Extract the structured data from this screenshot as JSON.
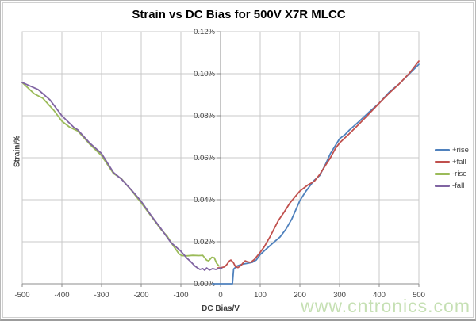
{
  "chart_data": {
    "type": "line",
    "title": "Strain vs DC Bias for 500V X7R MLCC",
    "xlabel": "DC Bias/V",
    "ylabel": "Strain/%",
    "xlim": [
      -500,
      500
    ],
    "ylim_percent": [
      0,
      0.12
    ],
    "grid": true,
    "legend_position": "right",
    "x_ticks": [
      {
        "value": -500,
        "label": "-500"
      },
      {
        "value": -400,
        "label": "-400"
      },
      {
        "value": -300,
        "label": "-300"
      },
      {
        "value": -200,
        "label": "-200"
      },
      {
        "value": -100,
        "label": "-100"
      },
      {
        "value": 0,
        "label": "0"
      },
      {
        "value": 100,
        "label": "100"
      },
      {
        "value": 200,
        "label": "200"
      },
      {
        "value": 300,
        "label": "300"
      },
      {
        "value": 400,
        "label": "400"
      },
      {
        "value": 500,
        "label": "500"
      }
    ],
    "y_ticks": [
      {
        "value": 0.0,
        "label": "0.00%"
      },
      {
        "value": 0.02,
        "label": "0.02%"
      },
      {
        "value": 0.04,
        "label": "0.04%"
      },
      {
        "value": 0.06,
        "label": "0.06%"
      },
      {
        "value": 0.08,
        "label": "0.08%"
      },
      {
        "value": 0.1,
        "label": "0.10%"
      },
      {
        "value": 0.12,
        "label": "0.12%"
      }
    ],
    "series": [
      {
        "name": "+rise",
        "color": "#4F81BD",
        "points": [
          [
            -20,
            0.0
          ],
          [
            30,
            0.0
          ],
          [
            33,
            0.007
          ],
          [
            42,
            0.0085
          ],
          [
            55,
            0.0093
          ],
          [
            70,
            0.0098
          ],
          [
            80,
            0.0102
          ],
          [
            90,
            0.0113
          ],
          [
            100,
            0.0139
          ],
          [
            115,
            0.0165
          ],
          [
            130,
            0.019
          ],
          [
            150,
            0.0223
          ],
          [
            165,
            0.026
          ],
          [
            180,
            0.031
          ],
          [
            200,
            0.0396
          ],
          [
            215,
            0.044
          ],
          [
            235,
            0.049
          ],
          [
            250,
            0.0515
          ],
          [
            265,
            0.057
          ],
          [
            277,
            0.062
          ],
          [
            300,
            0.069
          ],
          [
            315,
            0.0712
          ],
          [
            325,
            0.0732
          ],
          [
            350,
            0.0774
          ],
          [
            375,
            0.0818
          ],
          [
            400,
            0.086
          ],
          [
            425,
            0.0912
          ],
          [
            450,
            0.0951
          ],
          [
            475,
            0.0998
          ],
          [
            500,
            0.1045
          ]
        ]
      },
      {
        "name": "+fall",
        "color": "#C0504D",
        "points": [
          [
            -8,
            0.0075
          ],
          [
            0,
            0.0076
          ],
          [
            10,
            0.008
          ],
          [
            16,
            0.0092
          ],
          [
            22,
            0.0108
          ],
          [
            26,
            0.0113
          ],
          [
            32,
            0.0102
          ],
          [
            38,
            0.008
          ],
          [
            44,
            0.0077
          ],
          [
            52,
            0.0088
          ],
          [
            58,
            0.0102
          ],
          [
            62,
            0.0109
          ],
          [
            68,
            0.0104
          ],
          [
            76,
            0.0102
          ],
          [
            85,
            0.0115
          ],
          [
            96,
            0.014
          ],
          [
            110,
            0.0175
          ],
          [
            125,
            0.0225
          ],
          [
            146,
            0.0302
          ],
          [
            160,
            0.034
          ],
          [
            175,
            0.0385
          ],
          [
            200,
            0.0441
          ],
          [
            220,
            0.047
          ],
          [
            236,
            0.0487
          ],
          [
            250,
            0.052
          ],
          [
            265,
            0.0565
          ],
          [
            277,
            0.06
          ],
          [
            290,
            0.0645
          ],
          [
            300,
            0.067
          ],
          [
            325,
            0.0715
          ],
          [
            350,
            0.0762
          ],
          [
            375,
            0.081
          ],
          [
            400,
            0.086
          ],
          [
            425,
            0.0907
          ],
          [
            450,
            0.0951
          ],
          [
            475,
            0.1
          ],
          [
            500,
            0.106
          ]
        ]
      },
      {
        "name": "-rise",
        "color": "#9BBB59",
        "points": [
          [
            -500,
            0.0958
          ],
          [
            -470,
            0.0905
          ],
          [
            -448,
            0.0883
          ],
          [
            -420,
            0.0825
          ],
          [
            -400,
            0.0774
          ],
          [
            -380,
            0.0745
          ],
          [
            -360,
            0.0727
          ],
          [
            -330,
            0.0665
          ],
          [
            -300,
            0.061
          ],
          [
            -270,
            0.0525
          ],
          [
            -250,
            0.05
          ],
          [
            -225,
            0.0445
          ],
          [
            -200,
            0.0385
          ],
          [
            -175,
            0.0322
          ],
          [
            -150,
            0.0258
          ],
          [
            -135,
            0.0228
          ],
          [
            -120,
            0.0183
          ],
          [
            -105,
            0.0143
          ],
          [
            -98,
            0.0134
          ],
          [
            -85,
            0.0133
          ],
          [
            -70,
            0.0135
          ],
          [
            -55,
            0.0134
          ],
          [
            -45,
            0.0135
          ],
          [
            -35,
            0.0112
          ],
          [
            -30,
            0.0109
          ],
          [
            -22,
            0.0126
          ],
          [
            -16,
            0.0124
          ],
          [
            -10,
            0.0098
          ],
          [
            -4,
            0.0084
          ]
        ]
      },
      {
        "name": "-fall",
        "color": "#8064A2",
        "points": [
          [
            -500,
            0.0958
          ],
          [
            -460,
            0.0925
          ],
          [
            -430,
            0.0875
          ],
          [
            -400,
            0.08
          ],
          [
            -370,
            0.0745
          ],
          [
            -360,
            0.0733
          ],
          [
            -330,
            0.067
          ],
          [
            -300,
            0.062
          ],
          [
            -270,
            0.053
          ],
          [
            -250,
            0.0498
          ],
          [
            -225,
            0.0447
          ],
          [
            -200,
            0.0392
          ],
          [
            -175,
            0.0325
          ],
          [
            -150,
            0.0262
          ],
          [
            -125,
            0.0196
          ],
          [
            -100,
            0.0155
          ],
          [
            -85,
            0.0122
          ],
          [
            -75,
            0.0105
          ],
          [
            -65,
            0.0085
          ],
          [
            -58,
            0.0075
          ],
          [
            -52,
            0.0068
          ],
          [
            -45,
            0.0072
          ],
          [
            -40,
            0.0064
          ],
          [
            -35,
            0.0075
          ],
          [
            -28,
            0.0065
          ],
          [
            -20,
            0.0072
          ],
          [
            -12,
            0.0068
          ],
          [
            -5,
            0.0072
          ],
          [
            3,
            0.0074
          ]
        ]
      }
    ],
    "plot_style": {
      "gridline_color": "#c9c9c9",
      "axis_color": "#8c8c8c",
      "tick_label_color": "#3f3f3f",
      "line_width": 1.8
    }
  },
  "watermark": {
    "text": "www.cntronics.com",
    "color": "#c6e0b4"
  }
}
